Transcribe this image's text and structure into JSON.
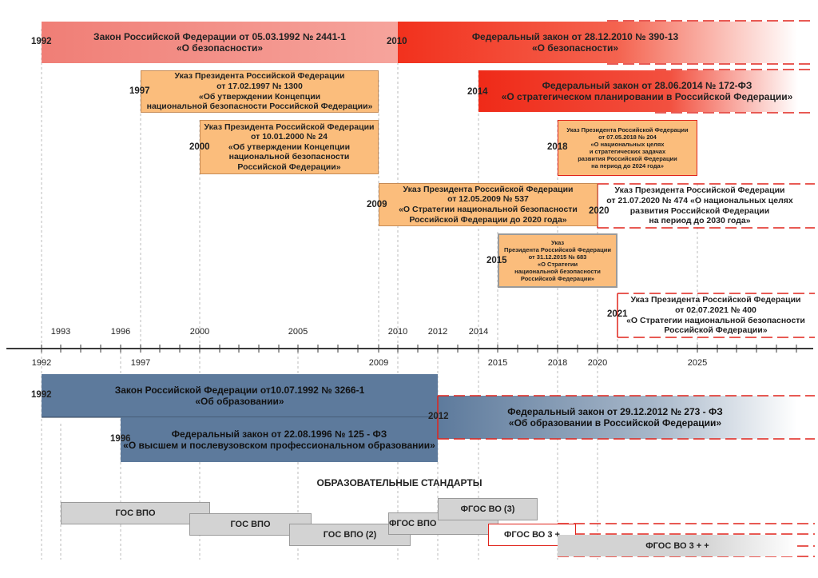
{
  "top_laws": {
    "law_1992": {
      "year": "1992",
      "text": "Закон Российской Федерации от 05.03.1992 № 2441-1\n«О безопасности»"
    },
    "law_2010": {
      "year": "2010",
      "text": "Федеральный закон от 28.12.2010 № 390-13\n«О безопасности»"
    },
    "law_2014": {
      "year": "2014",
      "text": "Федеральный закон от 28.06.2014 № 172-ФЗ\n«О стратегическом планировании в Российской Федерации»"
    },
    "decree_1997": {
      "year": "1997",
      "text": "Указ Президента Российской Федерации\nот 17.02.1997 № 1300\n«Об утверждении Концепции\nнациональной безопасности Российской Федерации»"
    },
    "decree_2000": {
      "year": "2000",
      "text": "Указ Президента Российской Федерации\nот 10.01.2000 № 24\n«Об утверждении Концепции\nнациональной безопасности\nРоссийской Федерации»"
    },
    "decree_2018": {
      "year": "2018",
      "text": "Указ Президента Российской Федерации\nот 07.05.2018 № 204\n«О национальных целях\nи стратегических задачах\nразвития Российской Федерации\nна период до 2024 года»"
    },
    "decree_2009": {
      "year": "2009",
      "text": "Указ Президента Российской Федерации\nот 12.05.2009 № 537\n«О Стратегии национальной безопасности\nРоссийской Федерации до 2020 года»"
    },
    "decree_2020": {
      "year": "2020",
      "text": "Указ Президента Российской Федерации\nот 21.07.2020 № 474 «О национальных целях\nразвития  Российской Федерации\nна период до 2030 года»"
    },
    "decree_2015": {
      "year": "2015",
      "text": "Указ\nПрезидента Российской Федерации\nот 31.12.2015 № 683\n«О Стратегии\nнациональной безопасности\nРоссийской Федерации»"
    },
    "decree_2021": {
      "year": "2021",
      "text": "Указ Президента Российской Федерации\nот 02.07.2021 № 400\n«О Стратегии национальной безопасности\nРоссийской Федерации»"
    }
  },
  "axis": {
    "upper_ticks": [
      "1993",
      "1996",
      "2000",
      "2005",
      "2010",
      "2012",
      "2014"
    ],
    "lower_ticks": [
      "1992",
      "1997",
      "2009",
      "2015",
      "2018",
      "2020",
      "2025"
    ]
  },
  "bottom_laws": {
    "law_1992": {
      "year": "1992",
      "text": "Закон Российской Федерации от10.07.1992 № 3266-1\n«Об образовании»"
    },
    "law_1996": {
      "year": "1996",
      "text": "Федеральный закон от 22.08.1996 № 125 - ФЗ\n«О высшем и послевузовском профессиональном образовании»"
    },
    "law_2012": {
      "year": "2012",
      "text": "Федеральный закон от 29.12.2012 № 273 - ФЗ\n«Об образовании в Российской Федерации»"
    }
  },
  "standards": {
    "title": "ОБРАЗОВАТЕЛЬНЫЕ СТАНДАРТЫ",
    "gos_vpo_1": "ГОС ВПО",
    "gos_vpo_2": "ГОС ВПО",
    "gos_vpo_3": "ГОС ВПО (2)",
    "fgos_vpo": "ФГОС ВПО",
    "fgos_vo_3": "ФГОС ВО (3)",
    "fgos_vo_3plus": "ФГОС ВО 3 +",
    "fgos_vo_3plusplus": "ФГОС ВО 3 + +"
  },
  "colors": {
    "salmon": "#f08a80",
    "red": "#f2311d",
    "orange": "#fbbd7c",
    "blue": "#5d7a9c",
    "grey": "#d3d3d3",
    "accent_red": "#e0241c"
  }
}
